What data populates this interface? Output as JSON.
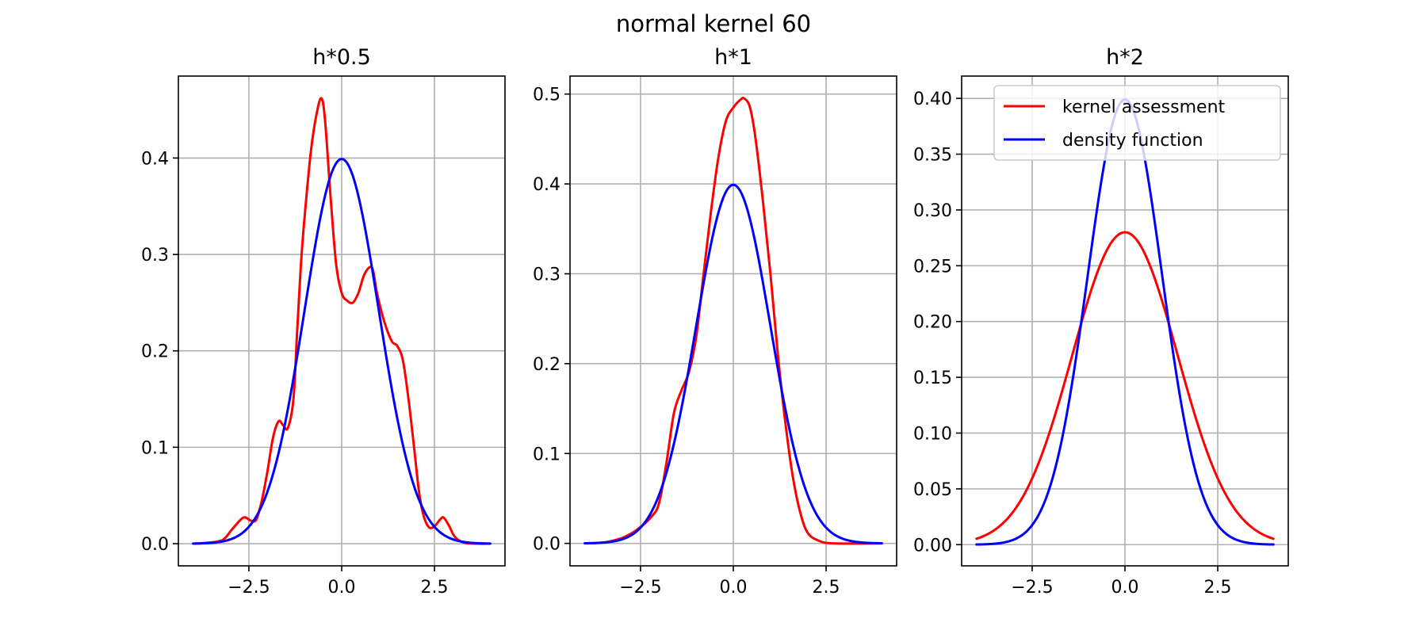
{
  "figure": {
    "suptitle": "normal kernel 60",
    "colors": {
      "kernel": "#ff0000",
      "density": "#0000ff",
      "grid": "#b0b0b0",
      "frame": "#000000"
    },
    "legend": {
      "placement": "top-right of third panel",
      "entries": [
        "kernel assessment",
        "density function"
      ]
    }
  },
  "chart_data": [
    {
      "type": "line",
      "title": "h*0.5",
      "xlabel": "",
      "ylabel": "",
      "xlim": [
        -4.4,
        4.4
      ],
      "ylim": [
        -0.023,
        0.485
      ],
      "xticks": [
        -2.5,
        0.0,
        2.5
      ],
      "xtick_labels": [
        "−2.5",
        "0.0",
        "2.5"
      ],
      "yticks": [
        0.0,
        0.1,
        0.2,
        0.3,
        0.4
      ],
      "ytick_labels": [
        "0.0",
        "0.1",
        "0.2",
        "0.3",
        "0.4"
      ],
      "grid": true,
      "series": [
        {
          "name": "kernel assessment",
          "color": "#ff0000",
          "points": [
            [
              -4.0,
              0.0
            ],
            [
              -3.6,
              0.001
            ],
            [
              -3.2,
              0.004
            ],
            [
              -2.95,
              0.015
            ],
            [
              -2.65,
              0.027
            ],
            [
              -2.45,
              0.024
            ],
            [
              -2.3,
              0.025
            ],
            [
              -2.15,
              0.045
            ],
            [
              -2.0,
              0.075
            ],
            [
              -1.85,
              0.11
            ],
            [
              -1.7,
              0.127
            ],
            [
              -1.58,
              0.123
            ],
            [
              -1.45,
              0.12
            ],
            [
              -1.3,
              0.15
            ],
            [
              -1.2,
              0.22
            ],
            [
              -1.08,
              0.3
            ],
            [
              -0.95,
              0.36
            ],
            [
              -0.82,
              0.41
            ],
            [
              -0.68,
              0.445
            ],
            [
              -0.55,
              0.462
            ],
            [
              -0.45,
              0.44
            ],
            [
              -0.3,
              0.36
            ],
            [
              -0.15,
              0.29
            ],
            [
              0.0,
              0.26
            ],
            [
              0.15,
              0.252
            ],
            [
              0.3,
              0.25
            ],
            [
              0.45,
              0.26
            ],
            [
              0.62,
              0.28
            ],
            [
              0.82,
              0.286
            ],
            [
              0.95,
              0.26
            ],
            [
              1.15,
              0.23
            ],
            [
              1.35,
              0.21
            ],
            [
              1.5,
              0.205
            ],
            [
              1.65,
              0.19
            ],
            [
              1.8,
              0.15
            ],
            [
              1.95,
              0.1
            ],
            [
              2.08,
              0.055
            ],
            [
              2.2,
              0.03
            ],
            [
              2.35,
              0.017
            ],
            [
              2.5,
              0.018
            ],
            [
              2.65,
              0.025
            ],
            [
              2.75,
              0.027
            ],
            [
              2.9,
              0.018
            ],
            [
              3.05,
              0.007
            ],
            [
              3.3,
              0.001
            ],
            [
              3.7,
              0.0
            ],
            [
              4.0,
              0.0
            ]
          ]
        },
        {
          "name": "density function",
          "color": "#0000ff",
          "distribution": "normal",
          "mean": 0.0,
          "std": 1.0,
          "x_range": [
            -4.0,
            4.0
          ],
          "peak": 0.399
        }
      ]
    },
    {
      "type": "line",
      "title": "h*1",
      "xlabel": "",
      "ylabel": "",
      "xlim": [
        -4.4,
        4.4
      ],
      "ylim": [
        -0.025,
        0.52
      ],
      "xticks": [
        -2.5,
        0.0,
        2.5
      ],
      "xtick_labels": [
        "−2.5",
        "0.0",
        "2.5"
      ],
      "yticks": [
        0.0,
        0.1,
        0.2,
        0.3,
        0.4,
        0.5
      ],
      "ytick_labels": [
        "0.0",
        "0.1",
        "0.2",
        "0.3",
        "0.4",
        "0.5"
      ],
      "grid": true,
      "series": [
        {
          "name": "kernel assessment",
          "color": "#ff0000",
          "points": [
            [
              -4.0,
              0.0
            ],
            [
              -3.5,
              0.001
            ],
            [
              -3.0,
              0.006
            ],
            [
              -2.6,
              0.015
            ],
            [
              -2.2,
              0.03
            ],
            [
              -2.0,
              0.045
            ],
            [
              -1.8,
              0.09
            ],
            [
              -1.6,
              0.145
            ],
            [
              -1.4,
              0.17
            ],
            [
              -1.2,
              0.19
            ],
            [
              -1.0,
              0.23
            ],
            [
              -0.8,
              0.3
            ],
            [
              -0.6,
              0.37
            ],
            [
              -0.4,
              0.43
            ],
            [
              -0.2,
              0.47
            ],
            [
              0.0,
              0.485
            ],
            [
              0.2,
              0.494
            ],
            [
              0.3,
              0.495
            ],
            [
              0.45,
              0.485
            ],
            [
              0.6,
              0.45
            ],
            [
              0.8,
              0.38
            ],
            [
              1.0,
              0.3
            ],
            [
              1.2,
              0.21
            ],
            [
              1.4,
              0.135
            ],
            [
              1.6,
              0.075
            ],
            [
              1.8,
              0.035
            ],
            [
              2.0,
              0.012
            ],
            [
              2.3,
              0.003
            ],
            [
              2.7,
              0.0
            ],
            [
              4.0,
              0.0
            ]
          ]
        },
        {
          "name": "density function",
          "color": "#0000ff",
          "distribution": "normal",
          "mean": 0.0,
          "std": 1.0,
          "x_range": [
            -4.0,
            4.0
          ],
          "peak": 0.399
        }
      ]
    },
    {
      "type": "line",
      "title": "h*2",
      "xlabel": "",
      "ylabel": "",
      "xlim": [
        -4.4,
        4.4
      ],
      "ylim": [
        -0.019,
        0.42
      ],
      "xticks": [
        -2.5,
        0.0,
        2.5
      ],
      "xtick_labels": [
        "−2.5",
        "0.0",
        "2.5"
      ],
      "yticks": [
        0.0,
        0.05,
        0.1,
        0.15,
        0.2,
        0.25,
        0.3,
        0.35,
        0.4
      ],
      "ytick_labels": [
        "0.00",
        "0.05",
        "0.10",
        "0.15",
        "0.20",
        "0.25",
        "0.30",
        "0.35",
        "0.40"
      ],
      "grid": true,
      "legend": true,
      "series": [
        {
          "name": "kernel assessment",
          "color": "#ff0000",
          "distribution": "normal",
          "mean": 0.0,
          "std": 1.42,
          "x_range": [
            -4.0,
            4.0
          ],
          "peak": 0.28
        },
        {
          "name": "density function",
          "color": "#0000ff",
          "distribution": "normal",
          "mean": 0.0,
          "std": 1.0,
          "x_range": [
            -4.0,
            4.0
          ],
          "peak": 0.399
        }
      ]
    }
  ]
}
